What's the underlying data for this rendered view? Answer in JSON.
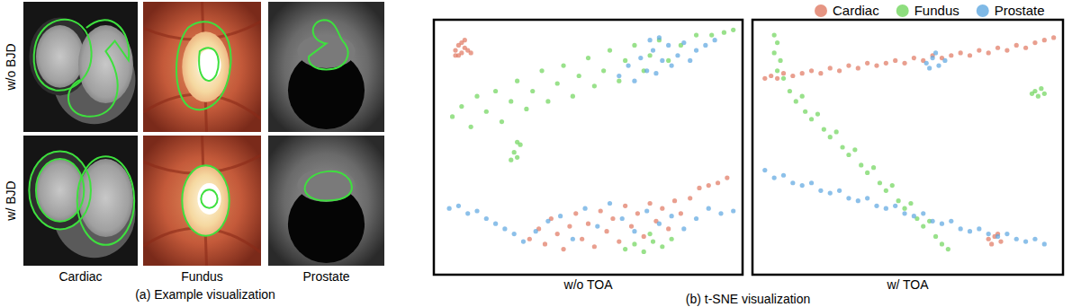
{
  "figure": {
    "panel_a": {
      "row_labels": [
        "w/o BJD",
        "w/ BJD"
      ],
      "column_labels": [
        "Cardiac",
        "Fundus",
        "Prostate"
      ],
      "caption": "(a) Example visualization"
    },
    "panel_b": {
      "caption": "(b) t-SNE visualization"
    }
  },
  "chart_data": [
    {
      "type": "scatter",
      "title": "w/o TOA",
      "xlim": [
        0,
        100
      ],
      "ylim": [
        0,
        100
      ],
      "tick_labels": false,
      "legend": "top-right",
      "series": [
        {
          "name": "Cardiac",
          "color": "#e07a64",
          "marker": "circle",
          "x": [
            7,
            8,
            9,
            10,
            8,
            11,
            9,
            12,
            7,
            10,
            31,
            34,
            36,
            38,
            40,
            42,
            44,
            46,
            48,
            50,
            52,
            54,
            56,
            58,
            60,
            62,
            64,
            66,
            68,
            70,
            72,
            74,
            76,
            78,
            80,
            83,
            86,
            89,
            92,
            95
          ],
          "y": [
            88,
            90,
            87,
            89,
            86,
            88,
            91,
            87,
            86,
            92,
            14,
            18,
            12,
            22,
            16,
            10,
            19,
            24,
            14,
            20,
            11,
            25,
            17,
            22,
            13,
            27,
            19,
            24,
            15,
            28,
            21,
            26,
            18,
            29,
            24,
            30,
            34,
            35,
            36,
            38
          ]
        },
        {
          "name": "Fundus",
          "color": "#72d65e",
          "marker": "circle",
          "x": [
            6,
            9,
            12,
            14,
            17,
            20,
            22,
            25,
            27,
            30,
            32,
            35,
            37,
            40,
            42,
            45,
            47,
            50,
            52,
            55,
            57,
            60,
            62,
            65,
            68,
            70,
            73,
            76,
            80,
            85,
            90,
            94,
            97,
            26,
            27,
            25,
            28,
            27,
            62,
            65,
            68,
            71,
            74,
            77,
            70
          ],
          "y": [
            62,
            66,
            58,
            70,
            64,
            72,
            60,
            68,
            76,
            65,
            72,
            80,
            68,
            75,
            82,
            70,
            78,
            85,
            74,
            80,
            88,
            76,
            84,
            90,
            80,
            86,
            92,
            84,
            90,
            94,
            94,
            95,
            96,
            48,
            46,
            45,
            51,
            52,
            10,
            12,
            9,
            13,
            11,
            14,
            16
          ]
        },
        {
          "name": "Prostate",
          "color": "#5fa8e0",
          "marker": "circle",
          "x": [
            60,
            63,
            65,
            67,
            69,
            71,
            72,
            74,
            76,
            77,
            79,
            81,
            83,
            85,
            88,
            91,
            70,
            73,
            5,
            8,
            11,
            14,
            17,
            20,
            23,
            26,
            29,
            33,
            37,
            41,
            45,
            49,
            53,
            57,
            61,
            65,
            69,
            73,
            77,
            81,
            85,
            89,
            93,
            97
          ],
          "y": [
            78,
            82,
            76,
            85,
            80,
            88,
            79,
            84,
            90,
            82,
            86,
            91,
            84,
            88,
            90,
            92,
            92,
            93,
            26,
            27,
            24,
            25,
            22,
            20,
            18,
            16,
            13,
            17,
            21,
            23,
            14,
            26,
            19,
            28,
            22,
            17,
            25,
            20,
            23,
            18,
            22,
            26,
            24,
            25
          ]
        }
      ]
    },
    {
      "type": "scatter",
      "title": "w/ TOA",
      "xlim": [
        0,
        100
      ],
      "ylim": [
        0,
        100
      ],
      "tick_labels": false,
      "series": [
        {
          "name": "Cardiac",
          "color": "#e07a64",
          "marker": "circle",
          "x": [
            4,
            6,
            8,
            10,
            13,
            16,
            19,
            22,
            25,
            28,
            31,
            34,
            37,
            40,
            43,
            46,
            49,
            52,
            55,
            58,
            61,
            64,
            67,
            70,
            73,
            76,
            79,
            82,
            85,
            88,
            91,
            94,
            97,
            76,
            78,
            80,
            77,
            79
          ],
          "y": [
            77,
            78,
            77,
            79,
            78,
            79,
            80,
            79,
            81,
            80,
            82,
            81,
            83,
            82,
            83,
            84,
            83,
            85,
            84,
            86,
            85,
            86,
            87,
            86,
            88,
            87,
            89,
            88,
            90,
            89,
            91,
            92,
            93,
            14,
            15,
            13,
            12,
            16
          ]
        },
        {
          "name": "Fundus",
          "color": "#72d65e",
          "marker": "circle",
          "x": [
            7,
            8,
            7,
            9,
            8,
            10,
            12,
            14,
            16,
            17,
            19,
            21,
            23,
            25,
            27,
            29,
            31,
            33,
            35,
            37,
            39,
            41,
            43,
            45,
            47,
            49,
            51,
            53,
            55,
            57,
            59,
            61,
            63,
            91,
            93,
            92,
            94,
            90
          ],
          "y": [
            94,
            91,
            87,
            84,
            80,
            77,
            72,
            68,
            70,
            64,
            61,
            63,
            57,
            54,
            56,
            50,
            47,
            49,
            43,
            40,
            42,
            36,
            33,
            35,
            29,
            26,
            28,
            22,
            19,
            21,
            15,
            12,
            10,
            72,
            73,
            70,
            71,
            71
          ]
        },
        {
          "name": "Prostate",
          "color": "#5fa8e0",
          "marker": "circle",
          "x": [
            56,
            58,
            60,
            62,
            59,
            57,
            4,
            7,
            10,
            13,
            16,
            19,
            22,
            25,
            28,
            31,
            34,
            37,
            40,
            43,
            46,
            49,
            52,
            55,
            58,
            61,
            64,
            67,
            70,
            73,
            76,
            79,
            82,
            85,
            88,
            91,
            94
          ],
          "y": [
            83,
            85,
            82,
            84,
            87,
            81,
            41,
            38,
            39,
            36,
            35,
            36,
            33,
            32,
            33,
            30,
            29,
            30,
            27,
            26,
            27,
            24,
            23,
            24,
            21,
            20,
            21,
            18,
            17,
            18,
            16,
            15,
            16,
            14,
            13,
            14,
            12
          ]
        }
      ]
    }
  ]
}
